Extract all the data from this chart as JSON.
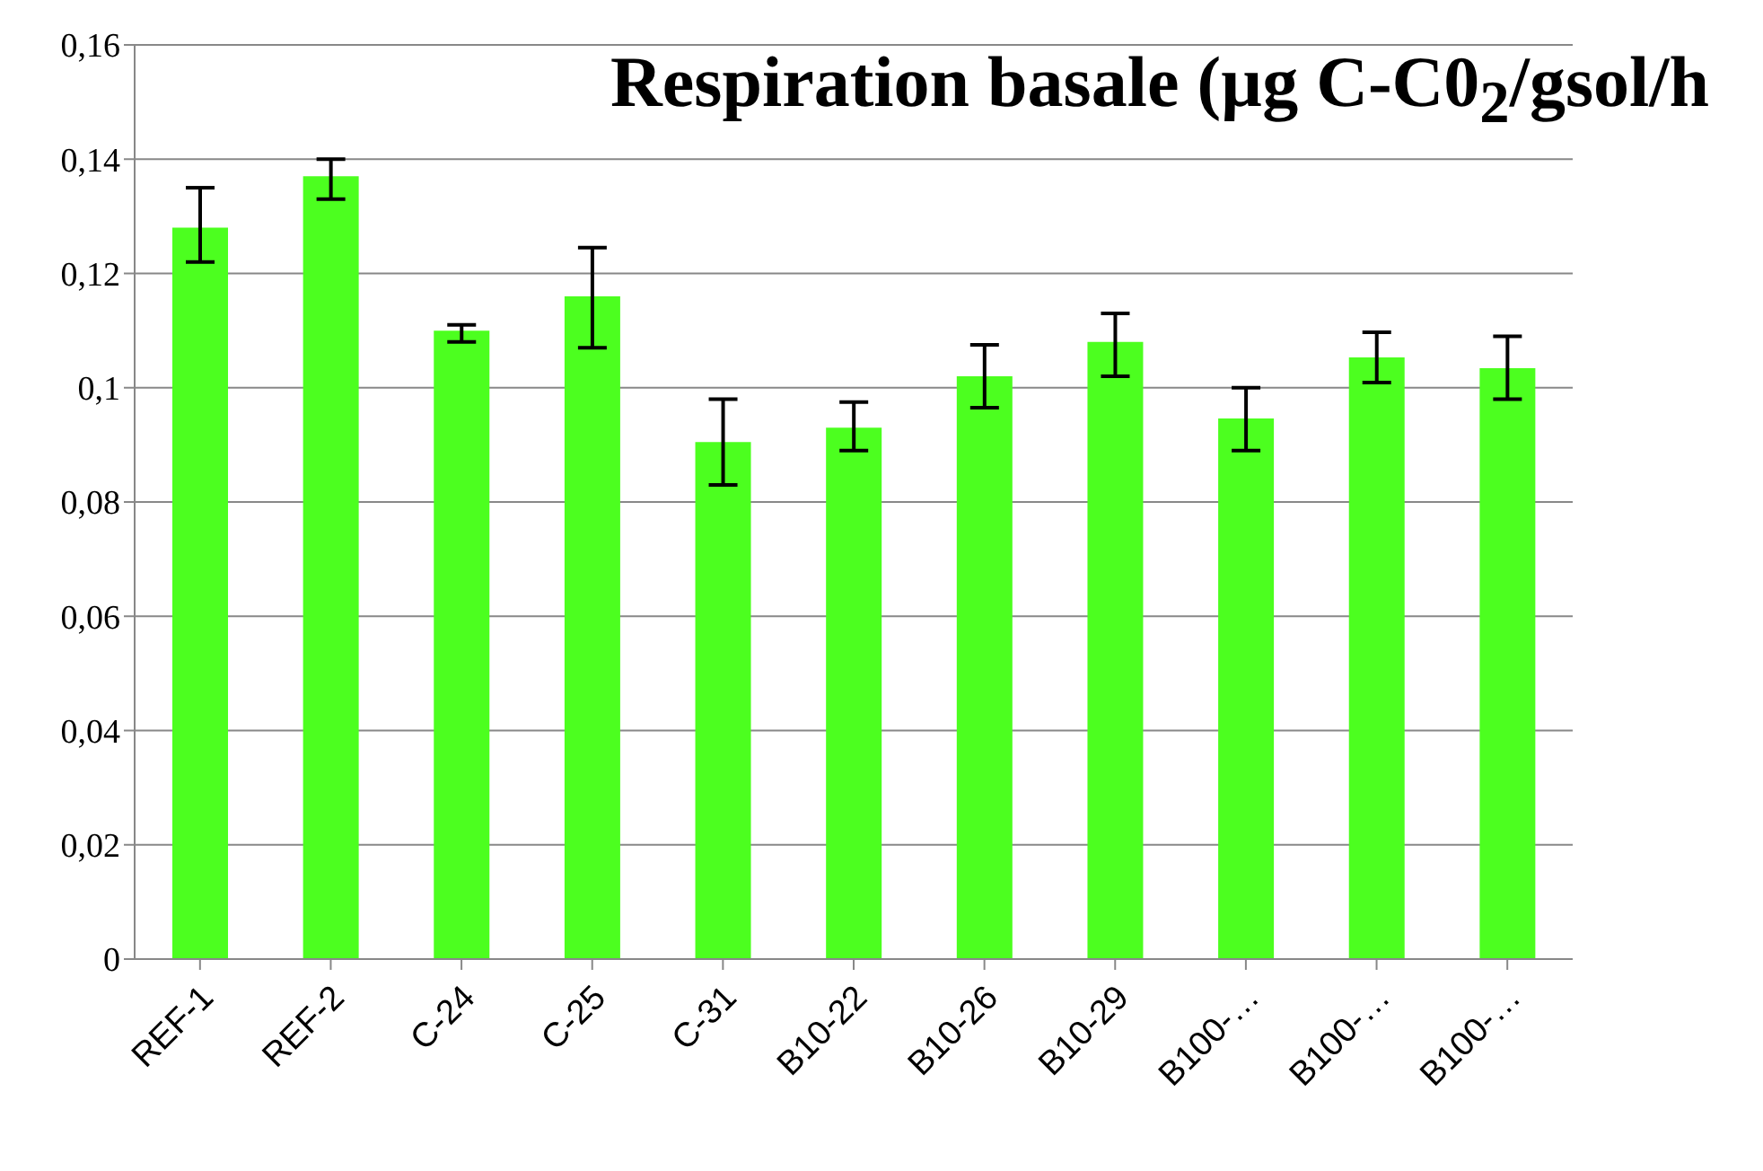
{
  "chart_data": {
    "type": "bar",
    "title": "Respiration basale (µg C-C0$_{2}$/gsol/h",
    "categories": [
      "REF-1",
      "REF-2",
      "C-24",
      "C-25",
      "C-31",
      "B10-22",
      "B10-26",
      "B10-29",
      "B100-…",
      "B100-…",
      "B100-…"
    ],
    "values": [
      0.128,
      0.137,
      0.11,
      0.116,
      0.0905,
      0.093,
      0.102,
      0.108,
      0.0946,
      0.1053,
      0.1034
    ],
    "errors": [
      [
        0.122,
        0.135
      ],
      [
        0.133,
        0.14
      ],
      [
        0.108,
        0.111
      ],
      [
        0.107,
        0.1245
      ],
      [
        0.083,
        0.098
      ],
      [
        0.089,
        0.0975
      ],
      [
        0.0965,
        0.1075
      ],
      [
        0.102,
        0.113
      ],
      [
        0.089,
        0.1
      ],
      [
        0.1009,
        0.1097
      ],
      [
        0.098,
        0.109
      ]
    ],
    "color": "#4cff1f",
    "ylim": [
      0,
      0.16
    ],
    "yticks": [
      0,
      {
        "value": 0.02,
        "label": "0,02"
      },
      {
        "value": 0.04,
        "label": "0,04"
      },
      {
        "value": 0.06,
        "label": "0,06"
      },
      {
        "value": 0.08,
        "label": "0,08"
      },
      {
        "value": 0.1,
        "label": "0,1"
      },
      {
        "value": 0.12,
        "label": "0,12"
      },
      {
        "value": 0.14,
        "label": "0,14"
      },
      {
        "value": 0.16,
        "label": "0,16"
      }
    ],
    "grid": "y"
  }
}
